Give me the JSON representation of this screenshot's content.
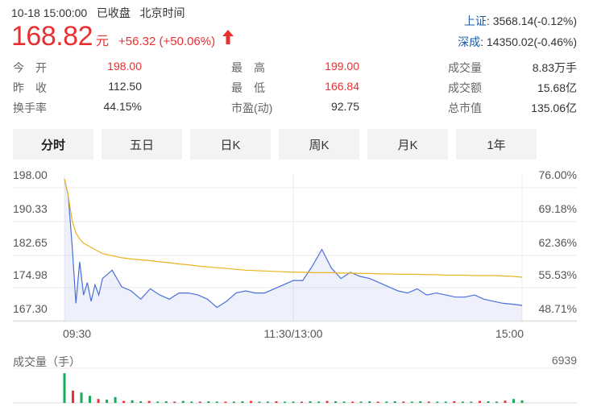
{
  "header": {
    "datetime": "10-18 15:00:00",
    "status": "已收盘",
    "timezone": "北京时间",
    "price": "168.82",
    "unit": "元",
    "change": "+56.32 (+50.06%)"
  },
  "indices": [
    {
      "name": "上证",
      "value": ": 3568.14(-0.12%)"
    },
    {
      "name": "深成",
      "value": ": 14350.02(-0.46%)"
    }
  ],
  "stats": [
    {
      "label": "今　开",
      "value": "198.00",
      "color": "red"
    },
    {
      "label": "最　高",
      "value": "199.00",
      "color": "red"
    },
    {
      "label": "成交量",
      "value": "8.83万手",
      "color": "normal"
    },
    {
      "label": "昨　收",
      "value": "112.50",
      "color": "normal"
    },
    {
      "label": "最　低",
      "value": "166.84",
      "color": "red"
    },
    {
      "label": "成交额",
      "value": "15.68亿",
      "color": "normal"
    },
    {
      "label": "换手率",
      "value": "44.15%",
      "color": "normal"
    },
    {
      "label": "市盈(动)",
      "value": "92.75",
      "color": "normal"
    },
    {
      "label": "总市值",
      "value": "135.06亿",
      "color": "normal"
    }
  ],
  "tabs": [
    {
      "label": "分时",
      "active": true
    },
    {
      "label": "五日",
      "active": false
    },
    {
      "label": "日K",
      "active": false
    },
    {
      "label": "周K",
      "active": false
    },
    {
      "label": "月K",
      "active": false
    },
    {
      "label": "1年",
      "active": false
    }
  ],
  "chart_data": {
    "type": "line",
    "y_left_ticks": [
      "198.00",
      "190.33",
      "182.65",
      "174.98",
      "167.30"
    ],
    "y_right_ticks": [
      "76.00%",
      "69.18%",
      "62.36%",
      "55.53%",
      "48.71%"
    ],
    "x_ticks": [
      "09:30",
      "11:30/13:00",
      "15:00"
    ],
    "ylim": [
      164.0,
      199.0
    ],
    "x": [
      0,
      2,
      4,
      6,
      8,
      10,
      12,
      14,
      16,
      18,
      20,
      25,
      30,
      35,
      40,
      45,
      50,
      55,
      60,
      65,
      70,
      75,
      80,
      85,
      90,
      95,
      100,
      105,
      110,
      115,
      120,
      125,
      130,
      135,
      140,
      145,
      150,
      155,
      160,
      165,
      170,
      175,
      180,
      185,
      190,
      195,
      200,
      205,
      210,
      215,
      220,
      225,
      230,
      235,
      240
    ],
    "series": [
      {
        "values": [
          198.0,
          194.0,
          182.0,
          168.0,
          178.0,
          170.0,
          173.0,
          168.5,
          172.5,
          170.0,
          174.0,
          176.0,
          172.0,
          171.0,
          169.0,
          171.5,
          170.0,
          169.0,
          170.5,
          170.5,
          170.0,
          169.0,
          167.0,
          168.5,
          170.5,
          171.0,
          170.5,
          170.5,
          171.5,
          172.5,
          173.5,
          173.5,
          177.0,
          181.0,
          176.5,
          174.0,
          175.5,
          174.5,
          174.0,
          173.0,
          172.0,
          171.0,
          170.5,
          171.5,
          170.0,
          170.5,
          170.0,
          169.5,
          169.5,
          170.0,
          169.0,
          168.5,
          168.0,
          167.8,
          167.5
        ]
      },
      {
        "values": [
          198.0,
          194.0,
          188.0,
          185.0,
          183.5,
          182.5,
          182.0,
          181.5,
          181.0,
          180.5,
          180.0,
          179.5,
          179.0,
          178.7,
          178.5,
          178.3,
          178.0,
          177.8,
          177.5,
          177.3,
          177.0,
          176.8,
          176.6,
          176.4,
          176.2,
          176.0,
          175.9,
          175.8,
          175.7,
          175.6,
          175.5,
          175.5,
          175.4,
          175.4,
          175.4,
          175.3,
          175.3,
          175.2,
          175.2,
          175.1,
          175.1,
          175.0,
          175.0,
          175.0,
          174.9,
          174.9,
          174.8,
          174.8,
          174.8,
          174.7,
          174.7,
          174.7,
          174.6,
          174.5,
          174.3
        ]
      }
    ]
  },
  "volume": {
    "label": "成交量（手）",
    "max": "6939",
    "values": [
      0.92,
      0.38,
      0.32,
      0.22,
      0.12,
      0.1,
      0.18,
      0.06,
      0.08,
      0.05,
      0.06,
      0.04,
      0.05,
      0.03,
      0.06,
      0.04,
      0.03,
      0.05,
      0.04,
      0.03,
      0.04,
      0.05,
      0.06,
      0.03,
      0.04,
      0.05,
      0.03,
      0.04,
      0.03,
      0.05,
      0.04,
      0.06,
      0.05,
      0.04,
      0.03,
      0.04,
      0.05,
      0.03,
      0.04,
      0.05,
      0.04,
      0.03,
      0.05,
      0.04,
      0.03,
      0.04,
      0.05,
      0.04,
      0.03,
      0.06,
      0.05,
      0.04,
      0.07,
      0.12,
      0.08
    ]
  }
}
